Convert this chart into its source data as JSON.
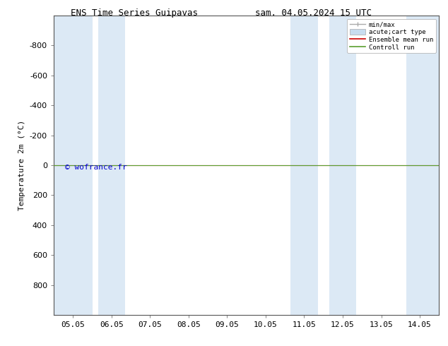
{
  "title_left": "ENS Time Series Guipavas",
  "title_right": "sam. 04.05.2024 15 UTC",
  "ylabel": "Temperature 2m (°C)",
  "ylim": [
    -1000,
    1000
  ],
  "yticks": [
    -800,
    -600,
    -400,
    -200,
    0,
    200,
    400,
    600,
    800
  ],
  "xtick_labels": [
    "05.05",
    "06.05",
    "07.05",
    "08.05",
    "09.05",
    "10.05",
    "11.05",
    "12.05",
    "13.05",
    "14.05"
  ],
  "background_color": "#ffffff",
  "plot_bg_color": "#ffffff",
  "shaded_color": "#dce9f5",
  "green_line_color": "#5a9e2f",
  "red_line_color": "#cc0000",
  "watermark_text": "© wofrance.fr",
  "watermark_color": "#0000cc",
  "legend_labels": [
    "min/max",
    "acute;cart type",
    "Ensemble mean run",
    "Controll run"
  ],
  "legend_colors_line": [
    "#aaaaaa",
    "#c8ddf0",
    "#cc0000",
    "#5a9e2f"
  ],
  "title_fontsize": 9,
  "axis_fontsize": 8,
  "tick_fontsize": 8
}
